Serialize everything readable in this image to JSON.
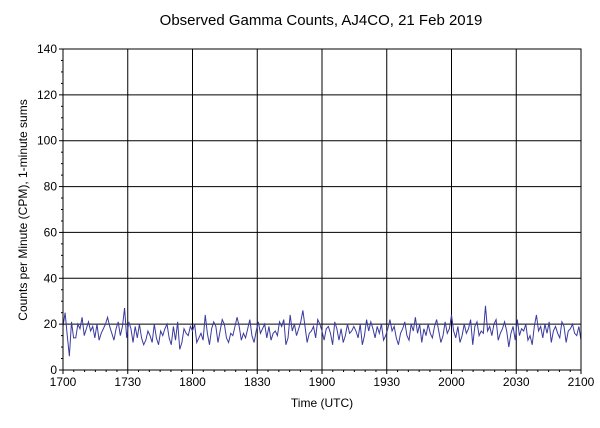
{
  "chart_data": {
    "type": "line",
    "title": "Observed Gamma Counts, AJ4CO, 21 Feb 2019",
    "xlabel": "Time (UTC)",
    "ylabel": "Counts per Minute (CPM), 1-minute sums",
    "x_tick_labels": [
      "1700",
      "1730",
      "1800",
      "1830",
      "1900",
      "1930",
      "2000",
      "2030",
      "2100"
    ],
    "y_ticks": [
      0,
      20,
      40,
      60,
      80,
      100,
      120,
      140
    ],
    "ylim": [
      0,
      140
    ],
    "x_range_minutes": [
      0,
      240
    ],
    "grid": true,
    "series": [
      {
        "color": "#3a3aa0",
        "values": [
          19,
          25,
          15,
          6,
          21,
          14,
          14,
          20,
          18,
          23,
          15,
          18,
          21,
          17,
          19,
          14,
          20,
          13,
          16,
          18,
          20,
          23,
          19,
          16,
          13,
          18,
          21,
          15,
          19,
          27,
          14,
          21,
          18,
          12,
          19,
          14,
          20,
          14,
          11,
          13,
          17,
          15,
          12,
          20,
          14,
          11,
          17,
          15,
          18,
          20,
          14,
          11,
          19,
          13,
          21,
          9,
          12,
          18,
          16,
          15,
          19,
          17,
          20,
          12,
          14,
          16,
          13,
          24,
          16,
          11,
          18,
          21,
          19,
          12,
          17,
          22,
          20,
          14,
          12,
          16,
          15,
          19,
          23,
          19,
          13,
          16,
          14,
          18,
          22,
          15,
          12,
          17,
          21,
          16,
          18,
          20,
          14,
          19,
          13,
          16,
          17,
          15,
          21,
          19,
          22,
          11,
          14,
          24,
          17,
          20,
          15,
          18,
          21,
          26,
          19,
          12,
          16,
          17,
          19,
          14,
          22,
          20,
          17,
          13,
          18,
          19,
          16,
          11,
          21,
          18,
          13,
          18,
          12,
          15,
          20,
          16,
          17,
          19,
          17,
          14,
          20,
          11,
          15,
          22,
          17,
          21,
          18,
          14,
          19,
          16,
          20,
          13,
          15,
          18,
          22,
          17,
          19,
          14,
          11,
          16,
          18,
          21,
          15,
          13,
          20,
          17,
          23,
          16,
          20,
          12,
          18,
          15,
          20,
          16,
          14,
          19,
          22,
          17,
          12,
          15,
          21,
          16,
          18,
          24,
          17,
          14,
          19,
          12,
          15,
          20,
          16,
          18,
          22,
          11,
          19,
          21,
          15,
          17,
          16,
          28,
          17,
          19,
          15,
          20,
          22,
          13,
          16,
          18,
          21,
          17,
          10,
          16,
          19,
          13,
          22,
          15,
          18,
          17,
          20,
          13,
          15,
          11,
          19,
          24,
          17,
          19,
          14,
          20,
          16,
          21,
          12,
          17,
          19,
          16,
          14,
          21,
          19,
          12,
          17,
          18,
          20,
          16,
          15,
          19,
          13
        ]
      }
    ]
  }
}
